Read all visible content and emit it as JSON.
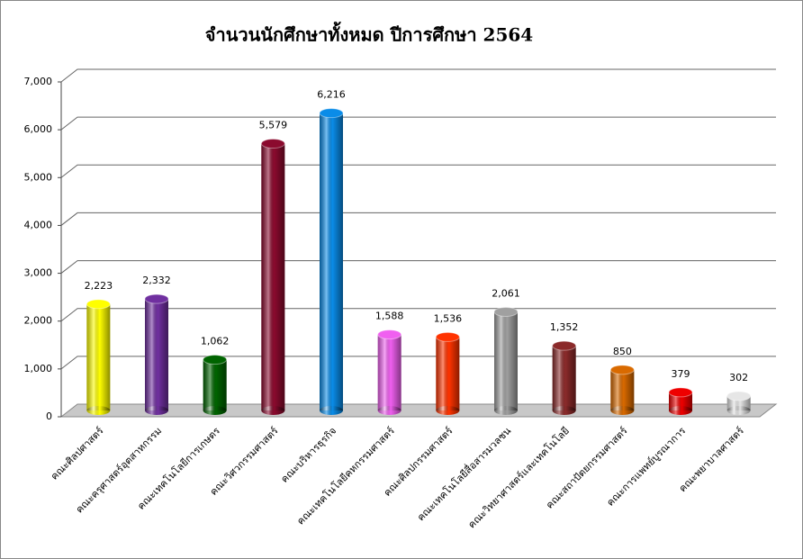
{
  "chart_data": {
    "type": "bar3d",
    "title": "จำนวนนักศึกษาทั้งหมด ปีการศึกษา 2564",
    "categories": [
      "คณะศิลปศาสตร์",
      "คณะครุศาสตร์อุตสาหกรรม",
      "คณะเทคโนโลยีการเกษตร",
      "คณะวิศวกรรมศาสตร์",
      "คณะบริหารธุรกิจ",
      "คณะเทคโนโลยีคหกรรมศาสตร์",
      "คณะศิลปกรรมศาสตร์",
      "คณะเทคโนโลยีสื่อสารมวลชน",
      "คณะวิทยาศาสตร์และเทคโนโลยี",
      "คณะสถาปัตยกรรมศาสตร์",
      "คณะการแพทย์บูรณาการ",
      "คณะพยาบาลศาสตร์"
    ],
    "values": [
      2223,
      2332,
      1062,
      5579,
      6216,
      1588,
      1536,
      2061,
      1352,
      850,
      379,
      302
    ],
    "value_labels": [
      "2,223",
      "2,332",
      "1,062",
      "5,579",
      "6,216",
      "1,588",
      "1,536",
      "2,061",
      "1,352",
      "850",
      "379",
      "302"
    ],
    "colors": [
      "#ffff00",
      "#7030a0",
      "#006400",
      "#8b0a2e",
      "#0a8ce8",
      "#f060f0",
      "#ff3300",
      "#a0a0a0",
      "#8b2a2a",
      "#d96a00",
      "#ee0000",
      "#e6e6e6"
    ],
    "ylim": [
      0,
      7000
    ],
    "yticks": [
      0,
      {
        "value": 1000,
        "label": "1,000"
      },
      {
        "value": 2000,
        "label": "2,000"
      },
      {
        "value": 3000,
        "label": "3,000"
      },
      {
        "value": 4000,
        "label": "4,000"
      },
      {
        "value": 5000,
        "label": "5,000"
      },
      {
        "value": 6000,
        "label": "6,000"
      },
      {
        "value": 7000,
        "label": "7,000"
      }
    ],
    "grid": true
  }
}
